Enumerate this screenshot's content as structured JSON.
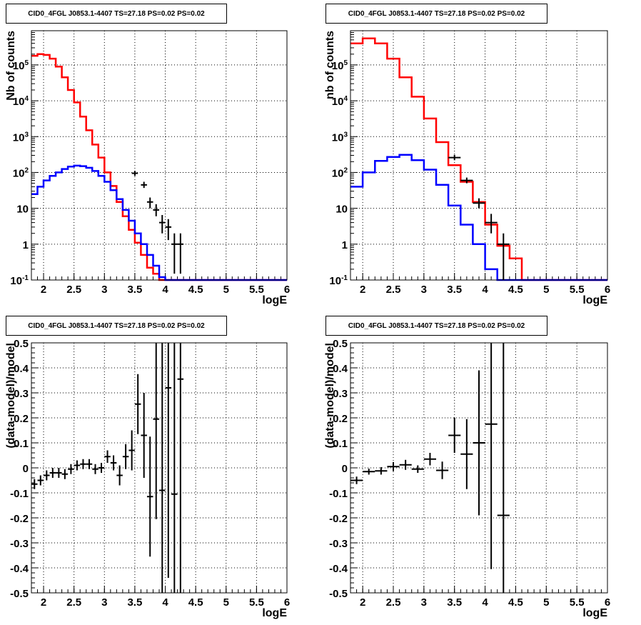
{
  "chart_data": [
    {
      "id": "tl",
      "type": "step",
      "title": "CID0_4FGL J0853.1-4407 TS=27.18 PS=0.02 PS=0.02",
      "xlabel": "logE",
      "ylabel": "Nb of counts",
      "xlim": [
        1.8,
        6.0
      ],
      "ylim": [
        0.1,
        900000
      ],
      "yscale": "log",
      "grid": true,
      "x_ticks": [
        "2",
        "2.5",
        "3",
        "3.5",
        "4",
        "4.5",
        "5",
        "5.5",
        "6"
      ],
      "y_ticks": [
        {
          "value": 0.1,
          "label": "10^-1"
        },
        {
          "value": 1,
          "label": "1"
        },
        {
          "value": 10,
          "label": "10"
        },
        {
          "value": 100,
          "label": "10^2"
        },
        {
          "value": 1000,
          "label": "10^3"
        },
        {
          "value": 10000,
          "label": "10^4"
        },
        {
          "value": 100000,
          "label": "10^5"
        }
      ],
      "bin_edges": [
        1.8,
        1.9,
        2.0,
        2.1,
        2.2,
        2.3,
        2.4,
        2.5,
        2.6,
        2.7,
        2.8,
        2.9,
        3.0,
        3.1,
        3.2,
        3.3,
        3.4,
        3.5,
        3.6,
        3.7,
        3.8,
        3.9,
        4.0,
        4.1,
        4.2,
        4.3,
        4.4,
        4.5,
        4.6,
        4.7,
        4.8,
        4.9,
        5.0,
        5.1,
        5.2,
        5.3,
        5.4,
        5.5,
        5.6,
        5.7,
        5.8,
        5.9,
        6.0
      ],
      "series": [
        {
          "color": "#ff0000",
          "values": [
            180000,
            200000,
            190000,
            150000,
            90000,
            45000,
            20000,
            9000,
            3600,
            1500,
            600,
            260,
            100,
            42,
            15,
            6,
            2.5,
            1.1,
            0.5,
            0.22,
            0.15,
            0.1,
            0.1,
            0.1,
            0.1,
            0.1,
            0.1,
            0.1,
            0.1,
            0.1,
            0.1,
            0.1,
            0.1,
            0.1,
            0.1,
            0.1,
            0.1,
            0.1,
            0.1,
            0.1,
            0.1,
            0.1
          ]
        },
        {
          "color": "#0000ff",
          "values": [
            25,
            40,
            60,
            80,
            100,
            125,
            145,
            155,
            150,
            135,
            110,
            80,
            55,
            32,
            18,
            9,
            4.5,
            2,
            1,
            0.5,
            0.25,
            0.12,
            0.1,
            0.1,
            0.1,
            0.1,
            0.1,
            0.1,
            0.1,
            0.1,
            0.1,
            0.1,
            0.1,
            0.1,
            0.1,
            0.1,
            0.1,
            0.1,
            0.1,
            0.1,
            0.1,
            0.1
          ]
        }
      ],
      "points": [
        {
          "x": 3.5,
          "xerr": 0.05,
          "y": 95,
          "ylo": 80,
          "yhi": 110
        },
        {
          "x": 3.65,
          "xerr": 0.05,
          "y": 45,
          "ylo": 37,
          "yhi": 55
        },
        {
          "x": 3.75,
          "xerr": 0.05,
          "y": 15,
          "ylo": 10,
          "yhi": 20
        },
        {
          "x": 3.85,
          "xerr": 0.05,
          "y": 9,
          "ylo": 6,
          "yhi": 13
        },
        {
          "x": 3.95,
          "xerr": 0.05,
          "y": 4,
          "ylo": 2,
          "yhi": 6.5
        },
        {
          "x": 4.05,
          "xerr": 0.05,
          "y": 3,
          "ylo": 1.3,
          "yhi": 5
        },
        {
          "x": 4.15,
          "xerr": 0.05,
          "y": 1,
          "ylo": 0.15,
          "yhi": 2
        },
        {
          "x": 4.25,
          "xerr": 0.05,
          "y": 1,
          "ylo": 0.15,
          "yhi": 2
        }
      ]
    },
    {
      "id": "tr",
      "type": "step",
      "title": "CID0_4FGL J0853.1-4407 TS=27.18 PS=0.02 PS=0.02",
      "xlabel": "logE",
      "ylabel": "nb of counts",
      "xlim": [
        1.8,
        6.0
      ],
      "ylim": [
        0.1,
        900000
      ],
      "yscale": "log",
      "grid": true,
      "x_ticks": [
        "2",
        "2.5",
        "3",
        "3.5",
        "4",
        "4.5",
        "5",
        "5.5",
        "6"
      ],
      "y_ticks": [
        {
          "value": 0.1,
          "label": "10^-1"
        },
        {
          "value": 1,
          "label": "1"
        },
        {
          "value": 10,
          "label": "10"
        },
        {
          "value": 100,
          "label": "10^2"
        },
        {
          "value": 1000,
          "label": "10^3"
        },
        {
          "value": 10000,
          "label": "10^4"
        },
        {
          "value": 100000,
          "label": "10^5"
        }
      ],
      "bin_edges": [
        1.8,
        2.0,
        2.2,
        2.4,
        2.6,
        2.8,
        3.0,
        3.2,
        3.4,
        3.6,
        3.8,
        4.0,
        4.2,
        4.4,
        4.6,
        4.8,
        5.0,
        5.2,
        5.4,
        5.6,
        5.8,
        6.0
      ],
      "series": [
        {
          "color": "#ff0000",
          "values": [
            400000,
            550000,
            400000,
            150000,
            45000,
            13000,
            3200,
            700,
            160,
            55,
            15,
            3.5,
            0.9,
            0.4,
            0.1,
            0.1,
            0.1,
            0.1,
            0.1,
            0.1,
            0.1
          ]
        },
        {
          "color": "#0000ff",
          "values": [
            40,
            100,
            210,
            270,
            310,
            220,
            120,
            45,
            12,
            3.5,
            1,
            0.2,
            0.1,
            0.1,
            0.1,
            0.1,
            0.1,
            0.1,
            0.1,
            0.1,
            0.1
          ]
        }
      ],
      "points": [
        {
          "x": 3.5,
          "xerr": 0.1,
          "y": 260,
          "ylo": 220,
          "yhi": 310
        },
        {
          "x": 3.7,
          "xerr": 0.1,
          "y": 60,
          "ylo": 50,
          "yhi": 72
        },
        {
          "x": 3.9,
          "xerr": 0.1,
          "y": 14,
          "ylo": 10,
          "yhi": 19
        },
        {
          "x": 4.1,
          "xerr": 0.1,
          "y": 4,
          "ylo": 2,
          "yhi": 7
        },
        {
          "x": 4.3,
          "xerr": 0.1,
          "y": 1,
          "ylo": 0.1,
          "yhi": 2
        }
      ]
    },
    {
      "id": "bl",
      "type": "errorbar",
      "title": "CID0_4FGL J0853.1-4407 TS=27.18 PS=0.02 PS=0.02",
      "xlabel": "logE",
      "ylabel": "(data-model)/model",
      "xlim": [
        1.8,
        6.0
      ],
      "ylim": [
        -0.5,
        0.5
      ],
      "grid": true,
      "x_ticks": [
        "2",
        "2.5",
        "3",
        "3.5",
        "4",
        "4.5",
        "5",
        "5.5",
        "6"
      ],
      "y_ticks": [
        "-0.5",
        "-0.4",
        "-0.3",
        "-0.2",
        "-0.1",
        "0",
        "0.1",
        "0.2",
        "0.3",
        "0.4",
        "0.5"
      ],
      "points": [
        {
          "x": 1.85,
          "xerr": 0.05,
          "y": -0.065,
          "err": 0.02
        },
        {
          "x": 1.95,
          "xerr": 0.05,
          "y": -0.05,
          "err": 0.02
        },
        {
          "x": 2.05,
          "xerr": 0.05,
          "y": -0.03,
          "err": 0.02
        },
        {
          "x": 2.15,
          "xerr": 0.05,
          "y": -0.02,
          "err": 0.02
        },
        {
          "x": 2.25,
          "xerr": 0.05,
          "y": -0.02,
          "err": 0.02
        },
        {
          "x": 2.35,
          "xerr": 0.05,
          "y": -0.025,
          "err": 0.02
        },
        {
          "x": 2.45,
          "xerr": 0.05,
          "y": -0.005,
          "err": 0.02
        },
        {
          "x": 2.55,
          "xerr": 0.05,
          "y": 0.01,
          "err": 0.02
        },
        {
          "x": 2.65,
          "xerr": 0.05,
          "y": 0.015,
          "err": 0.02
        },
        {
          "x": 2.75,
          "xerr": 0.05,
          "y": 0.015,
          "err": 0.02
        },
        {
          "x": 2.85,
          "xerr": 0.05,
          "y": -0.005,
          "err": 0.02
        },
        {
          "x": 2.95,
          "xerr": 0.05,
          "y": 0.0,
          "err": 0.02
        },
        {
          "x": 3.05,
          "xerr": 0.05,
          "y": 0.045,
          "err": 0.025
        },
        {
          "x": 3.15,
          "xerr": 0.05,
          "y": 0.02,
          "err": 0.03
        },
        {
          "x": 3.25,
          "xerr": 0.05,
          "y": -0.03,
          "err": 0.04
        },
        {
          "x": 3.35,
          "xerr": 0.05,
          "y": 0.045,
          "err": 0.05
        },
        {
          "x": 3.45,
          "xerr": 0.05,
          "y": 0.07,
          "err": 0.08
        },
        {
          "x": 3.55,
          "xerr": 0.05,
          "y": 0.255,
          "err": 0.12
        },
        {
          "x": 3.65,
          "xerr": 0.05,
          "y": 0.13,
          "err": 0.17
        },
        {
          "x": 3.75,
          "xerr": 0.05,
          "y": -0.115,
          "err": 0.24
        },
        {
          "x": 3.85,
          "xerr": 0.05,
          "y": 0.195,
          "err": 0.4
        },
        {
          "x": 3.95,
          "xerr": 0.05,
          "y": -0.09,
          "err": 0.6
        },
        {
          "x": 4.05,
          "xerr": 0.05,
          "y": 0.32,
          "err": 0.76
        },
        {
          "x": 4.15,
          "xerr": 0.05,
          "y": -0.105,
          "err": 0.8
        },
        {
          "x": 4.25,
          "xerr": 0.05,
          "y": 0.355,
          "err": 0.9
        }
      ]
    },
    {
      "id": "br",
      "type": "errorbar",
      "title": "CID0_4FGL J0853.1-4407 TS=27.18 PS=0.02 PS=0.02",
      "xlabel": "logE",
      "ylabel": "(data-model)/model",
      "xlim": [
        1.8,
        6.0
      ],
      "ylim": [
        -0.5,
        0.5
      ],
      "grid": true,
      "x_ticks": [
        "2",
        "2.5",
        "3",
        "3.5",
        "4",
        "4.5",
        "5",
        "5.5",
        "6"
      ],
      "y_ticks": [
        "-0.5",
        "-0.4",
        "-0.3",
        "-0.2",
        "-0.1",
        "0",
        "0.1",
        "0.2",
        "0.3",
        "0.4",
        "0.5"
      ],
      "points": [
        {
          "x": 1.9,
          "xerr": 0.1,
          "y": -0.05,
          "err": 0.015
        },
        {
          "x": 2.1,
          "xerr": 0.1,
          "y": -0.015,
          "err": 0.012
        },
        {
          "x": 2.3,
          "xerr": 0.1,
          "y": -0.012,
          "err": 0.015
        },
        {
          "x": 2.5,
          "xerr": 0.1,
          "y": 0.005,
          "err": 0.018
        },
        {
          "x": 2.7,
          "xerr": 0.1,
          "y": 0.012,
          "err": 0.02
        },
        {
          "x": 2.9,
          "xerr": 0.1,
          "y": -0.005,
          "err": 0.015
        },
        {
          "x": 3.1,
          "xerr": 0.1,
          "y": 0.035,
          "err": 0.025
        },
        {
          "x": 3.3,
          "xerr": 0.1,
          "y": -0.01,
          "err": 0.035
        },
        {
          "x": 3.5,
          "xerr": 0.1,
          "y": 0.13,
          "err": 0.07
        },
        {
          "x": 3.7,
          "xerr": 0.1,
          "y": 0.055,
          "err": 0.14
        },
        {
          "x": 3.9,
          "xerr": 0.1,
          "y": 0.1,
          "err": 0.29
        },
        {
          "x": 4.1,
          "xerr": 0.1,
          "y": 0.175,
          "err": 0.58
        },
        {
          "x": 4.3,
          "xerr": 0.1,
          "y": -0.19,
          "err": 0.9
        }
      ]
    }
  ]
}
